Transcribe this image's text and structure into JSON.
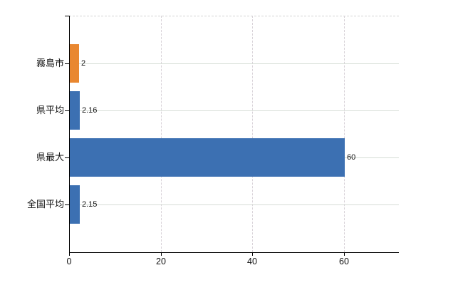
{
  "chart_data": {
    "type": "bar",
    "orientation": "horizontal",
    "title": "",
    "xlabel": "",
    "ylabel": "",
    "categories": [
      "霧島市",
      "県平均",
      "県最大",
      "全国平均"
    ],
    "values": [
      2,
      2.16,
      60,
      2.15
    ],
    "value_labels": [
      "2",
      "2.16",
      "60",
      "2.15"
    ],
    "bar_colors": [
      "#e98730",
      "#3c70b2",
      "#3c70b2",
      "#3c70b2"
    ],
    "xlim": [
      0,
      72
    ],
    "xticks": [
      0,
      20,
      40,
      60
    ],
    "xtick_labels": [
      "0",
      "20",
      "40",
      "60"
    ],
    "grid": true,
    "legend_position": "none",
    "colors": {
      "accent_orange": "#e98730",
      "accent_blue": "#3c70b2",
      "axis": "#000000",
      "grid_horizontal": "#d6ddd6",
      "grid_vertical": "#d8d2d8",
      "text": "#111111",
      "background": "#ffffff"
    }
  }
}
